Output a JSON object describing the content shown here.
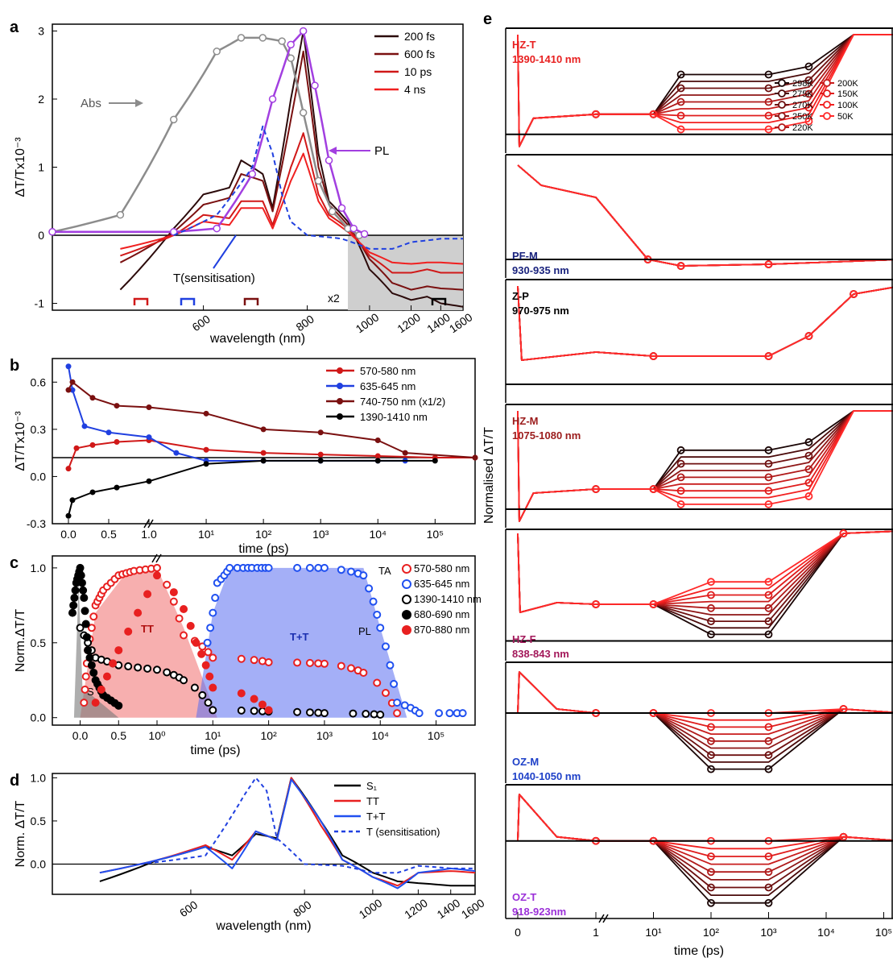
{
  "colors": {
    "abs": "#8c8c8c",
    "pl": "#a23fe0",
    "k200fs": "#2b0a0a",
    "k600fs": "#7a1010",
    "k10ps": "#d01818",
    "k4ns": "#f02020",
    "sens": "#2040e0",
    "s1": "#000000",
    "tt": "#e82020",
    "tpt": "#2050f0",
    "k298": "#1a0505",
    "k275": "#4a0a0a",
    "k270": "#6e1010",
    "k250": "#8e1616",
    "k220": "#b01a1a",
    "k200": "#c81c1c",
    "k150": "#e01c1c",
    "k100": "#f22020",
    "k50": "#ff2a2a",
    "lbl_red": "#e82020",
    "lbl_navy": "#1a237e",
    "lbl_black": "#000000",
    "lbl_darkred": "#9b1c1c",
    "lbl_maroon": "#a3185a",
    "lbl_blue": "#1e40c8",
    "lbl_purple": "#9b30d8"
  },
  "chart_data": [
    {
      "id": "a",
      "panel_label": "a",
      "type": "line",
      "xlabel": "wavelength (nm)",
      "ylabel": "ΔT/Tx10⁻³",
      "ylim": [
        -1.1,
        3.1
      ],
      "xticks": [
        "600",
        "800",
        "1000",
        "1200",
        "1400",
        "1600"
      ],
      "yticks": [
        "-1",
        "0",
        "1",
        "2",
        "3"
      ],
      "legend": [
        "200 fs",
        "600 fs",
        "10 ps",
        "4 ns"
      ],
      "annotations": [
        "Abs",
        "PL",
        "T(sensitisation)",
        "x2"
      ],
      "series": [
        {
          "name": "200 fs",
          "x": [
            500,
            560,
            600,
            640,
            660,
            700,
            720,
            760,
            790,
            830,
            860,
            920,
            1000,
            1100,
            1200,
            1300,
            1400,
            1600
          ],
          "y": [
            -0.8,
            0.1,
            0.6,
            0.7,
            1.1,
            0.9,
            0.4,
            2.0,
            3.0,
            1.2,
            0.5,
            0.2,
            -0.5,
            -0.85,
            -0.95,
            -0.9,
            -1.0,
            -1.05
          ]
        },
        {
          "name": "600 fs",
          "x": [
            500,
            560,
            600,
            640,
            660,
            700,
            720,
            760,
            790,
            830,
            860,
            920,
            1000,
            1100,
            1200,
            1300,
            1400,
            1600
          ],
          "y": [
            -0.4,
            0.05,
            0.45,
            0.55,
            0.9,
            0.8,
            0.35,
            1.7,
            2.7,
            1.0,
            0.45,
            0.15,
            -0.35,
            -0.7,
            -0.8,
            -0.75,
            -0.78,
            -0.8
          ]
        },
        {
          "name": "10 ps",
          "x": [
            500,
            560,
            600,
            640,
            660,
            700,
            720,
            760,
            790,
            830,
            860,
            920,
            1000,
            1100,
            1200,
            1300,
            1400,
            1600
          ],
          "y": [
            -0.3,
            0.0,
            0.3,
            0.25,
            0.5,
            0.5,
            0.15,
            1.0,
            1.5,
            0.6,
            0.3,
            0.1,
            -0.3,
            -0.55,
            -0.55,
            -0.5,
            -0.55,
            -0.55
          ]
        },
        {
          "name": "4 ns",
          "x": [
            500,
            560,
            600,
            640,
            660,
            700,
            720,
            760,
            790,
            830,
            860,
            920,
            1000,
            1100,
            1200,
            1300,
            1400,
            1600
          ],
          "y": [
            -0.2,
            0.0,
            0.2,
            0.15,
            0.4,
            0.4,
            0.1,
            0.8,
            1.2,
            0.5,
            0.25,
            0.05,
            -0.25,
            -0.4,
            -0.42,
            -0.4,
            -0.4,
            -0.42
          ]
        },
        {
          "name": "Abs",
          "x": [
            440,
            500,
            560,
            620,
            660,
            700,
            740,
            760,
            790,
            830,
            870,
            920,
            960
          ],
          "y": [
            0.05,
            0.3,
            1.7,
            2.7,
            2.9,
            2.9,
            2.85,
            2.6,
            1.8,
            0.8,
            0.35,
            0.1,
            0.0
          ]
        },
        {
          "name": "PL",
          "x": [
            440,
            560,
            620,
            680,
            720,
            760,
            790,
            820,
            860,
            900,
            940,
            980
          ],
          "y": [
            0.05,
            0.05,
            0.1,
            0.9,
            2.0,
            2.8,
            3.0,
            2.2,
            1.1,
            0.4,
            0.1,
            0.02
          ]
        },
        {
          "name": "T(sensitisation)",
          "x": [
            560,
            620,
            680,
            700,
            720,
            740,
            760,
            800,
            900,
            1000,
            1100,
            1200,
            1400,
            1600
          ],
          "y": [
            0.0,
            0.3,
            1.0,
            1.6,
            1.2,
            0.6,
            0.2,
            0.0,
            -0.05,
            -0.2,
            -0.2,
            -0.1,
            -0.05,
            -0.05
          ]
        }
      ]
    },
    {
      "id": "b",
      "panel_label": "b",
      "type": "line",
      "xlabel": "time (ps)",
      "ylabel": "ΔT/Tx10⁻³",
      "ylim": [
        -0.3,
        0.75
      ],
      "xticks": [
        "0.0",
        "0.5",
        "1.0",
        "10¹",
        "10²",
        "10³",
        "10⁴",
        "10⁵"
      ],
      "yticks": [
        "-0.3",
        "0.0",
        "0.3",
        "0.6"
      ],
      "legend": [
        "570-580 nm",
        "635-645 nm",
        "740-750 nm (x1/2)",
        "1390-1410 nm"
      ],
      "series": [
        {
          "name": "570-580 nm",
          "t": [
            0,
            0.1,
            0.3,
            0.6,
            1.0,
            10,
            100,
            1000,
            10000,
            100000,
            500000
          ],
          "y": [
            0.05,
            0.18,
            0.2,
            0.22,
            0.23,
            0.17,
            0.15,
            0.14,
            0.13,
            0.12,
            0.12
          ]
        },
        {
          "name": "635-645 nm",
          "t": [
            0,
            0.05,
            0.2,
            0.5,
            1.0,
            3,
            10,
            100,
            1000,
            10000,
            30000
          ],
          "y": [
            0.7,
            0.55,
            0.32,
            0.28,
            0.25,
            0.15,
            0.1,
            0.1,
            0.1,
            0.1,
            0.1
          ]
        },
        {
          "name": "740-750 nm (x1/2)",
          "t": [
            0,
            0.05,
            0.3,
            0.6,
            1.0,
            10,
            100,
            1000,
            10000,
            30000,
            500000
          ],
          "y": [
            0.55,
            0.6,
            0.5,
            0.45,
            0.44,
            0.4,
            0.3,
            0.28,
            0.23,
            0.15,
            0.12
          ]
        },
        {
          "name": "1390-1410 nm",
          "t": [
            0,
            0.05,
            0.3,
            0.6,
            1.0,
            10,
            100,
            1000,
            10000,
            100000
          ],
          "y": [
            -0.25,
            -0.15,
            -0.1,
            -0.07,
            -0.03,
            0.08,
            0.1,
            0.1,
            0.1,
            0.1
          ]
        }
      ]
    },
    {
      "id": "c",
      "panel_label": "c",
      "type": "scatter",
      "xlabel": "time (ps)",
      "ylabel": "Norm.ΔT/T",
      "ylim": [
        -0.05,
        1.08
      ],
      "xticks": [
        "0.0",
        "0.5",
        "10⁰",
        "10¹",
        "10²",
        "10³",
        "10⁴",
        "10⁵"
      ],
      "yticks": [
        "0.0",
        "0.5",
        "1.0"
      ],
      "legend_group_ta": "TA",
      "legend_group_pl": "PL",
      "legend": [
        "570-580 nm",
        "635-645 nm",
        "1390-1410 nm",
        "680-690 nm",
        "870-880 nm"
      ],
      "area_labels": [
        "S",
        "TT",
        "T+T"
      ],
      "series": [
        {
          "name": "570-580 nm",
          "t": [
            0.05,
            0.1,
            0.2,
            0.3,
            0.5,
            0.7,
            1.0,
            3,
            10,
            100,
            1000,
            5000,
            20000
          ],
          "y": [
            0.1,
            0.45,
            0.75,
            0.85,
            0.95,
            0.98,
            1.0,
            0.55,
            0.4,
            0.37,
            0.36,
            0.3,
            0.03
          ]
        },
        {
          "name": "635-645 nm",
          "t": [
            8,
            12,
            20,
            50,
            100,
            1000,
            5000,
            10000,
            20000,
            50000,
            300000
          ],
          "y": [
            0.5,
            0.9,
            1.0,
            1.0,
            1.0,
            1.0,
            0.95,
            0.6,
            0.1,
            0.03,
            0.03
          ]
        },
        {
          "name": "1390-1410 nm",
          "t": [
            0,
            0.2,
            0.5,
            1.0,
            3,
            10,
            100,
            1000,
            10000
          ],
          "y": [
            0.6,
            0.4,
            0.35,
            0.32,
            0.25,
            0.05,
            0.04,
            0.03,
            0.02
          ]
        },
        {
          "name": "680-690 nm",
          "t": [
            -0.1,
            -0.05,
            0,
            0.05,
            0.1,
            0.2,
            0.3,
            0.5
          ],
          "y": [
            0.7,
            0.9,
            1.0,
            0.8,
            0.45,
            0.25,
            0.15,
            0.08
          ]
        },
        {
          "name": "870-880 nm",
          "t": [
            0.2,
            0.5,
            1.0,
            5,
            10,
            100
          ],
          "y": [
            0.1,
            0.45,
            0.95,
            0.5,
            0.2,
            0.05
          ]
        }
      ]
    },
    {
      "id": "d",
      "panel_label": "d",
      "type": "line",
      "xlabel": "wavelength (nm)",
      "ylabel": "Norm. ΔT/T",
      "ylim": [
        -0.35,
        1.05
      ],
      "xticks": [
        "600",
        "800",
        "1000",
        "1200",
        "1400",
        "1600"
      ],
      "yticks": [
        "0.0",
        "0.5",
        "1.0"
      ],
      "legend": [
        "S₁",
        "TT",
        "T+T",
        "T (sensitisation)"
      ],
      "series": [
        {
          "name": "S₁",
          "x": [
            500,
            560,
            620,
            660,
            700,
            740,
            770,
            840,
            900,
            1000,
            1100,
            1200,
            1400,
            1600
          ],
          "y": [
            -0.2,
            0.05,
            0.2,
            0.1,
            0.35,
            0.3,
            1.0,
            0.5,
            0.1,
            -0.1,
            -0.2,
            -0.22,
            -0.25,
            -0.25
          ]
        },
        {
          "name": "TT",
          "x": [
            500,
            560,
            620,
            660,
            700,
            740,
            770,
            840,
            900,
            1000,
            1100,
            1200,
            1400,
            1600
          ],
          "y": [
            -0.1,
            0.05,
            0.22,
            0.05,
            0.38,
            0.28,
            1.0,
            0.45,
            0.05,
            -0.15,
            -0.25,
            -0.1,
            -0.08,
            -0.1
          ]
        },
        {
          "name": "T+T",
          "x": [
            500,
            560,
            620,
            660,
            700,
            740,
            770,
            840,
            900,
            1000,
            1100,
            1200,
            1400,
            1600
          ],
          "y": [
            -0.1,
            0.05,
            0.2,
            -0.05,
            0.38,
            0.28,
            0.98,
            0.5,
            0.05,
            -0.15,
            -0.28,
            -0.1,
            -0.05,
            -0.08
          ]
        },
        {
          "name": "T (sensitisation)",
          "x": [
            540,
            620,
            680,
            700,
            720,
            740,
            800,
            900,
            1000,
            1100,
            1200,
            1400,
            1600
          ],
          "y": [
            0.0,
            0.1,
            0.8,
            1.0,
            0.85,
            0.3,
            0.0,
            -0.02,
            -0.1,
            -0.1,
            -0.02,
            -0.05,
            -0.05
          ]
        }
      ]
    },
    {
      "id": "e",
      "panel_label": "e",
      "type": "line",
      "xlabel": "time (ps)",
      "ylabel": "Normalised  ΔT/T",
      "xticks": [
        "0",
        "1",
        "10¹",
        "10²",
        "10³",
        "10⁴",
        "10⁵"
      ],
      "legend": [
        "298K",
        "275K",
        "270K",
        "250K",
        "220K",
        "200K",
        "150K",
        "100K",
        "50K"
      ],
      "subpanels": [
        {
          "name": "HZ-T",
          "range": "1390-1410 nm",
          "color_key": "lbl_red"
        },
        {
          "name": "PF-M",
          "range": "930-935 nm",
          "color_key": "lbl_navy"
        },
        {
          "name": "Z-P",
          "range": "970-975 nm",
          "color_key": "lbl_black"
        },
        {
          "name": "HZ-M",
          "range": "1075-1080 nm",
          "color_key": "lbl_darkred"
        },
        {
          "name": "HZ-F",
          "range": "838-843 nm",
          "color_key": "lbl_maroon"
        },
        {
          "name": "OZ-M",
          "range": "1040-1050 nm",
          "color_key": "lbl_blue"
        },
        {
          "name": "OZ-T",
          "range": "918-923nm",
          "color_key": "lbl_purple"
        }
      ]
    }
  ]
}
